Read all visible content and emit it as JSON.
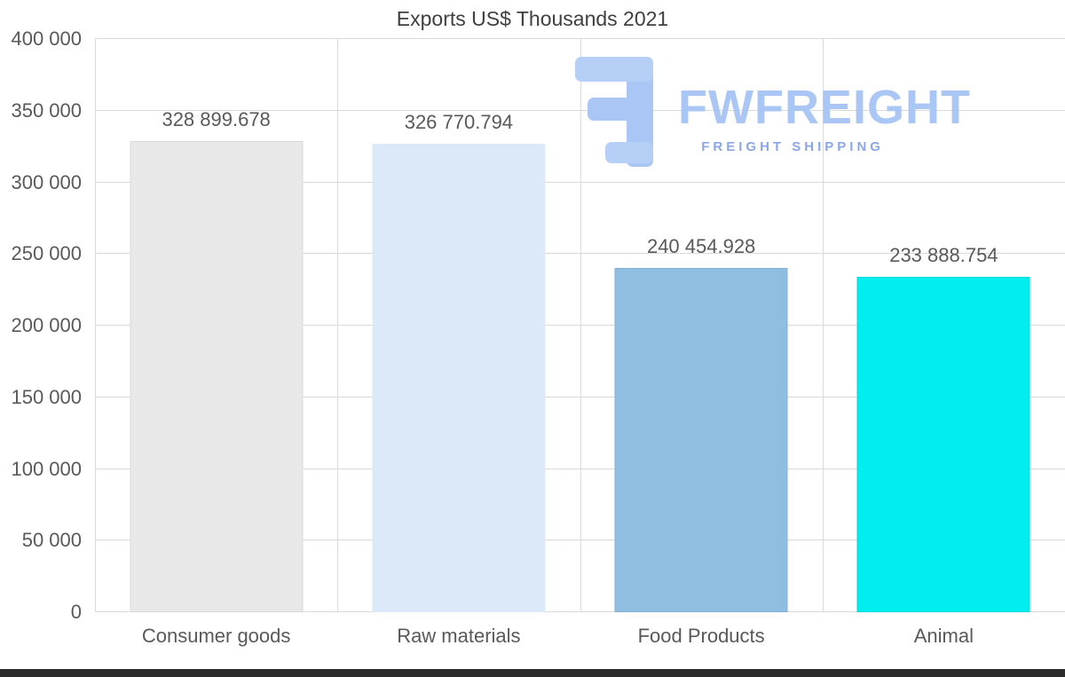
{
  "chart_data": {
    "type": "bar",
    "title": "Exports US$ Thousands 2021",
    "categories": [
      "Consumer goods",
      "Raw materials",
      "Food Products",
      "Animal"
    ],
    "values": [
      328899.678,
      326770.794,
      240454.928,
      233888.754
    ],
    "value_labels": [
      "328 899.678",
      "326 770.794",
      "240 454.928",
      "233 888.754"
    ],
    "bar_colors": [
      "#e8e8e8",
      "#dbe9f8",
      "#90bee1",
      "#00eef0"
    ],
    "bar_border_colors": [
      "#d8d8d8",
      "#cdе0f0",
      "#82b0d4",
      "#00d8da"
    ],
    "ylim": [
      0,
      400000
    ],
    "ytick_step": 50000,
    "ytick_labels": [
      "0",
      "50 000",
      "100 000",
      "150 000",
      "200 000",
      "250 000",
      "300 000",
      "350 000",
      "400 000"
    ],
    "xlabel": "",
    "ylabel": "",
    "grid": true,
    "legend": false
  },
  "watermark": {
    "name": "FWFREIGHT",
    "tagline": "FREIGHT SHIPPING"
  },
  "colors": {
    "wm-main": "#a9c6f4",
    "wm-sub": "#8ba7ea",
    "grid": "#d9d9d9",
    "text": "#595959",
    "title": "#404040",
    "bottom-bar": "#2d2d2d"
  }
}
